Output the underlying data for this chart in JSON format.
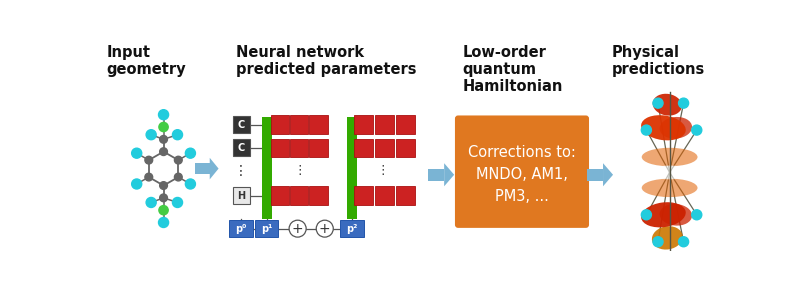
{
  "title_labels": [
    "Input\ngeometry",
    "Neural network\npredicted parameters",
    "Low-order\nquantum\nHamiltonian",
    "Physical\npredictions"
  ],
  "bg_color": "#ffffff",
  "arrow_color": "#7ab4d4",
  "nn_box_color": "#cc2222",
  "nn_green_color": "#33aa00",
  "nn_dark_color": "#333333",
  "nn_blue_color": "#3a6bbf",
  "orange_box_color": "#e07820",
  "orange_text": "Corrections to:\nMNDO, AM1,\nPM3, ...",
  "orange_text_color": "#ffffff",
  "atom_grey": "#666666",
  "atom_cyan": "#22ccdd",
  "atom_green": "#44cc44"
}
